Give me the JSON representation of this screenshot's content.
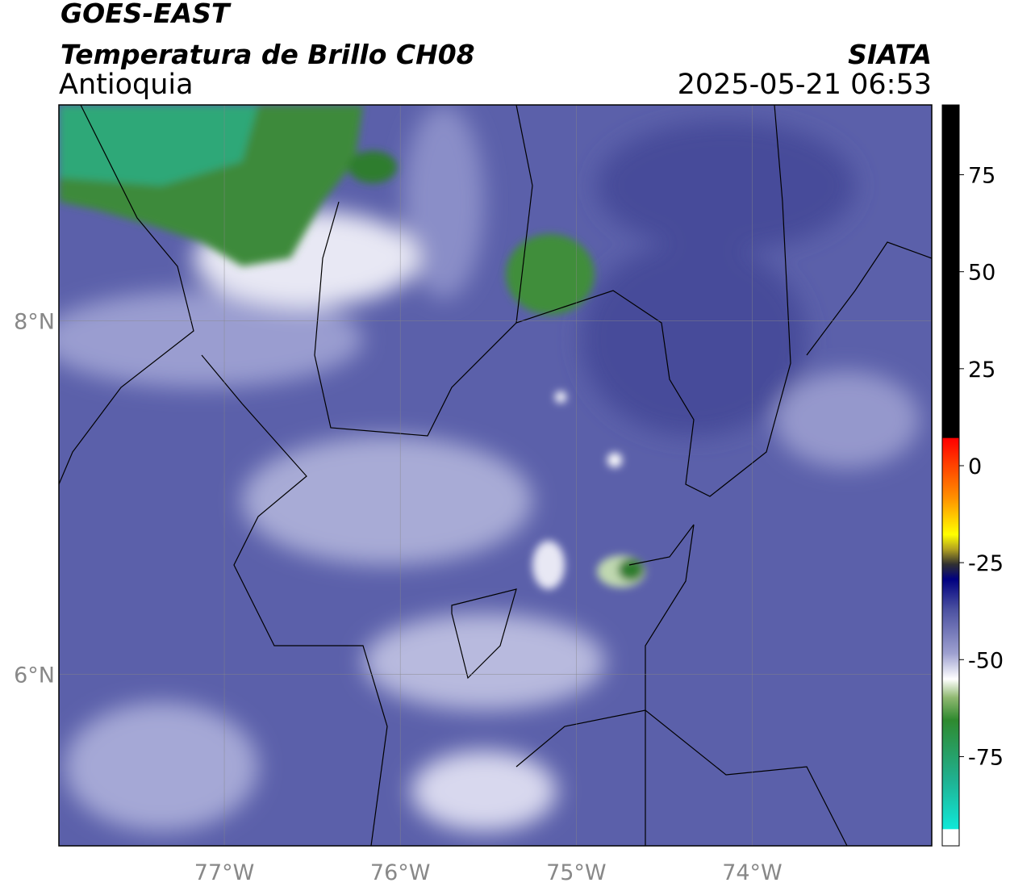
{
  "header": {
    "title": "GOES-EAST",
    "subtitle": "Temperatura de Brillo CH08",
    "region": "Antioquia",
    "source": "SIATA",
    "datetime": "2025-05-21 06:53"
  },
  "map": {
    "xlim": [
      -77.94,
      -72.98
    ],
    "ylim": [
      5.03,
      9.22
    ],
    "lon_ticks": [
      {
        "value": -77,
        "label": "77°W"
      },
      {
        "value": -76,
        "label": "76°W"
      },
      {
        "value": -75,
        "label": "75°W"
      },
      {
        "value": -74,
        "label": "74°W"
      }
    ],
    "lat_ticks": [
      {
        "value": 8,
        "label": "8°N"
      },
      {
        "value": 6,
        "label": "6°N"
      }
    ]
  },
  "colorbar": {
    "lim": [
      -98,
      93
    ],
    "ticks": [
      75,
      50,
      25,
      0,
      -25,
      -50,
      -75
    ]
  }
}
